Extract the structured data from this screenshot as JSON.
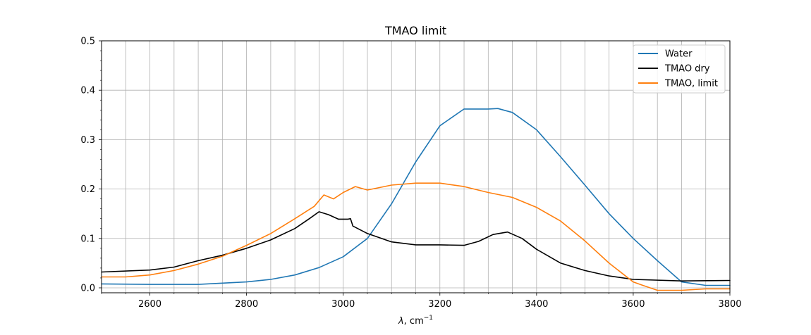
{
  "chart_data": {
    "type": "line",
    "title": "TMAO limit",
    "xlabel_main": "λ",
    "xlabel_unit": ", cm",
    "xlabel_exp": "−1",
    "ylabel": "",
    "xlim": [
      2500,
      3800
    ],
    "ylim": [
      -0.01,
      0.5
    ],
    "xticks": [
      2600,
      2800,
      3000,
      3200,
      3400,
      3600,
      3800
    ],
    "xtick_labels": [
      "2600",
      "2800",
      "3000",
      "3200",
      "3400",
      "3600",
      "3800"
    ],
    "yticks": [
      0.0,
      0.1,
      0.2,
      0.3,
      0.4,
      0.5
    ],
    "ytick_labels": [
      "0.0",
      "0.1",
      "0.2",
      "0.3",
      "0.4",
      "0.5"
    ],
    "grid": true,
    "legend_position": "top-right",
    "series": [
      {
        "name": "Water",
        "color": "#1f77b4",
        "x": [
          2500,
          2600,
          2700,
          2800,
          2850,
          2900,
          2950,
          3000,
          3050,
          3100,
          3150,
          3200,
          3250,
          3300,
          3320,
          3350,
          3400,
          3450,
          3500,
          3550,
          3600,
          3650,
          3700,
          3750,
          3800
        ],
        "y": [
          0.008,
          0.007,
          0.007,
          0.012,
          0.017,
          0.026,
          0.041,
          0.063,
          0.1,
          0.17,
          0.255,
          0.328,
          0.362,
          0.362,
          0.363,
          0.355,
          0.32,
          0.265,
          0.208,
          0.15,
          0.1,
          0.055,
          0.012,
          0.005,
          0.005
        ]
      },
      {
        "name": "TMAO dry",
        "color": "#000000",
        "x": [
          2500,
          2600,
          2650,
          2700,
          2750,
          2800,
          2850,
          2900,
          2930,
          2950,
          2970,
          2990,
          3010,
          3015,
          3020,
          3050,
          3100,
          3150,
          3200,
          3250,
          3280,
          3310,
          3340,
          3370,
          3400,
          3450,
          3500,
          3550,
          3600,
          3700,
          3800
        ],
        "y": [
          0.032,
          0.036,
          0.042,
          0.055,
          0.066,
          0.08,
          0.097,
          0.12,
          0.14,
          0.154,
          0.148,
          0.139,
          0.139,
          0.14,
          0.125,
          0.11,
          0.093,
          0.087,
          0.087,
          0.086,
          0.094,
          0.108,
          0.113,
          0.1,
          0.078,
          0.05,
          0.035,
          0.024,
          0.017,
          0.014,
          0.015
        ]
      },
      {
        "name": "TMAO, limit",
        "color": "#ff7f0e",
        "x": [
          2500,
          2550,
          2600,
          2650,
          2700,
          2750,
          2800,
          2850,
          2900,
          2940,
          2960,
          2980,
          3000,
          3025,
          3050,
          3100,
          3150,
          3200,
          3250,
          3300,
          3350,
          3400,
          3450,
          3500,
          3550,
          3600,
          3620,
          3650,
          3700,
          3750,
          3800
        ],
        "y": [
          0.022,
          0.022,
          0.026,
          0.035,
          0.048,
          0.064,
          0.086,
          0.11,
          0.14,
          0.165,
          0.188,
          0.18,
          0.193,
          0.205,
          0.198,
          0.208,
          0.212,
          0.212,
          0.205,
          0.193,
          0.183,
          0.163,
          0.135,
          0.095,
          0.05,
          0.012,
          0.005,
          -0.005,
          -0.005,
          -0.002,
          -0.002
        ]
      }
    ]
  }
}
